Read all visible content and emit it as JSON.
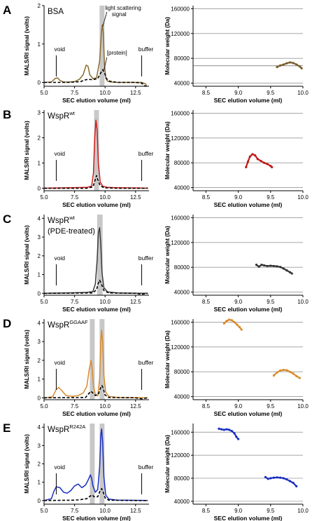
{
  "figure": {
    "panels": [
      {
        "letter": "A",
        "protein": "BSA",
        "protein_sup": "",
        "protein_note": "",
        "left_labels": {
          "void": "void",
          "buffer": "buffer",
          "signal": "light scattering signal",
          "protein_label": "[protein]"
        },
        "right_ref_line": 68000
      },
      {
        "letter": "B",
        "protein": "WspR",
        "protein_sup": "wt",
        "protein_note": "",
        "left_labels": {
          "void": "void",
          "buffer": "buffer"
        }
      },
      {
        "letter": "C",
        "protein": "WspR",
        "protein_sup": "wt",
        "protein_note": "(PDE-treated)",
        "left_labels": {
          "void": "void",
          "buffer": "buffer"
        }
      },
      {
        "letter": "D",
        "protein": "WspR",
        "protein_sup": "GGAAF",
        "protein_note": "",
        "left_labels": {
          "void": "void",
          "buffer": "buffer"
        }
      },
      {
        "letter": "E",
        "protein": "WspR",
        "protein_sup": "R242A",
        "protein_note": "",
        "left_labels": {
          "void": "void",
          "buffer": "buffer"
        }
      }
    ],
    "left_axis": {
      "xlabel": "SEC elution volume (ml)",
      "ylabel": "MALS/RI signal (volts)"
    },
    "right_axis": {
      "xlabel": "SEC elution volume (ml)",
      "ylabel": "Molecular weight (Da)"
    }
  },
  "chart_data": [
    {
      "panel": "A-left",
      "type": "line",
      "xlim": [
        5.0,
        13.6
      ],
      "ylim": [
        -0.1,
        2.0
      ],
      "xticks": [
        "5.0",
        "7.5",
        "10.0",
        "12.5"
      ],
      "yticks": [
        "0",
        "1",
        "2"
      ],
      "shaded": [
        [
          9.55,
          9.95
        ]
      ],
      "series": [
        {
          "color": "#8a6a2e",
          "style": "solid",
          "x": [
            5.0,
            5.6,
            5.9,
            6.1,
            6.3,
            6.6,
            7.0,
            7.5,
            7.9,
            8.2,
            8.45,
            8.6,
            8.75,
            9.0,
            9.3,
            9.55,
            9.7,
            9.78,
            9.85,
            9.95,
            10.05,
            10.2,
            10.5,
            11.0,
            12.0,
            13.0,
            13.4
          ],
          "y": [
            0.0,
            0.01,
            0.1,
            0.12,
            0.05,
            0.01,
            0.01,
            0.02,
            0.08,
            0.2,
            0.45,
            0.42,
            0.2,
            0.1,
            0.12,
            0.55,
            1.3,
            1.5,
            1.3,
            0.5,
            0.12,
            0.03,
            0.01,
            0.0,
            0.0,
            0.0,
            -0.05
          ]
        },
        {
          "color": "#000000",
          "style": "dashed",
          "x": [
            5.0,
            7.0,
            8.0,
            8.3,
            8.6,
            9.0,
            9.4,
            9.65,
            9.8,
            9.95,
            10.1,
            10.4,
            11.0,
            12.5,
            13.0,
            13.3,
            13.5
          ],
          "y": [
            0.0,
            0.0,
            0.02,
            0.06,
            0.08,
            0.07,
            0.1,
            0.25,
            0.33,
            0.26,
            0.1,
            0.03,
            0.0,
            0.0,
            -0.02,
            -0.1,
            -0.05
          ]
        }
      ]
    },
    {
      "panel": "A-right",
      "type": "scatter",
      "xlim": [
        8.3,
        10.0
      ],
      "ylim": [
        35000,
        165000
      ],
      "xticks": [
        "8.5",
        "9.0",
        "9.5",
        "10.0"
      ],
      "yticks": [
        "40000",
        "80000",
        "120000",
        "160000"
      ],
      "hlines": [
        68000
      ],
      "series": [
        {
          "color": "#7a5a2a",
          "x": [
            9.6,
            9.65,
            9.7,
            9.75,
            9.8,
            9.85,
            9.9,
            9.95,
            9.98
          ],
          "y": [
            66000,
            68500,
            70000,
            72000,
            73500,
            72500,
            70000,
            67000,
            64000
          ]
        }
      ]
    },
    {
      "panel": "B-left",
      "type": "line",
      "xlim": [
        5.0,
        13.6
      ],
      "ylim": [
        -0.1,
        3.1
      ],
      "xticks": [
        "5.0",
        "7.5",
        "10.0",
        "12.5"
      ],
      "yticks": [
        "0",
        "1",
        "2",
        "3"
      ],
      "shaded": [
        [
          9.1,
          9.5
        ]
      ],
      "series": [
        {
          "color": "#d01a1a",
          "style": "solid",
          "x": [
            5.0,
            7.0,
            8.5,
            8.9,
            9.05,
            9.15,
            9.25,
            9.35,
            9.45,
            9.6,
            9.8,
            10.2,
            11.0,
            12.5,
            13.5
          ],
          "y": [
            0.0,
            0.02,
            0.03,
            0.08,
            0.6,
            2.0,
            2.7,
            2.3,
            1.0,
            0.25,
            0.08,
            0.03,
            0.02,
            0.01,
            0.0
          ]
        },
        {
          "color": "#000000",
          "style": "dashed",
          "x": [
            5.0,
            8.5,
            9.0,
            9.2,
            9.3,
            9.4,
            9.6,
            9.9,
            11.0,
            13.5
          ],
          "y": [
            0.0,
            0.0,
            0.05,
            0.35,
            0.5,
            0.35,
            0.1,
            0.02,
            0.0,
            0.0
          ]
        }
      ]
    },
    {
      "panel": "B-right",
      "type": "scatter",
      "xlim": [
        8.3,
        10.0
      ],
      "ylim": [
        35000,
        165000
      ],
      "xticks": [
        "8.5",
        "9.0",
        "9.5",
        "10.0"
      ],
      "yticks": [
        "40000",
        "80000",
        "120000",
        "160000"
      ],
      "series": [
        {
          "color": "#c01818",
          "x": [
            9.12,
            9.15,
            9.18,
            9.22,
            9.26,
            9.3,
            9.35,
            9.4,
            9.45,
            9.5,
            9.52
          ],
          "y": [
            73000,
            82000,
            90000,
            94000,
            92000,
            86000,
            83000,
            80000,
            78000,
            75000,
            73000
          ]
        }
      ]
    },
    {
      "panel": "C-left",
      "type": "line",
      "xlim": [
        5.0,
        13.6
      ],
      "ylim": [
        -0.1,
        4.2
      ],
      "xticks": [
        "5.0",
        "7.5",
        "10.0",
        "12.5"
      ],
      "yticks": [
        "0",
        "1",
        "2",
        "3",
        "4"
      ],
      "shaded": [
        [
          9.35,
          9.8
        ]
      ],
      "series": [
        {
          "color": "#3a3a3a",
          "style": "solid",
          "x": [
            5.0,
            7.0,
            8.5,
            9.0,
            9.2,
            9.35,
            9.45,
            9.55,
            9.65,
            9.75,
            9.9,
            10.2,
            11.0,
            12.5,
            13.5
          ],
          "y": [
            0.0,
            0.02,
            0.05,
            0.1,
            0.5,
            1.8,
            3.2,
            3.5,
            2.6,
            1.1,
            0.3,
            0.08,
            0.02,
            0.01,
            0.0
          ]
        },
        {
          "color": "#000000",
          "style": "dashed",
          "x": [
            5.0,
            9.0,
            9.3,
            9.45,
            9.55,
            9.7,
            9.9,
            10.3,
            12.5,
            13.0,
            13.5
          ],
          "y": [
            0.0,
            0.02,
            0.2,
            0.55,
            0.7,
            0.5,
            0.15,
            0.02,
            0.0,
            -0.05,
            0.0
          ]
        }
      ]
    },
    {
      "panel": "C-right",
      "type": "scatter",
      "xlim": [
        8.3,
        10.0
      ],
      "ylim": [
        35000,
        165000
      ],
      "xticks": [
        "8.5",
        "9.0",
        "9.5",
        "10.0"
      ],
      "yticks": [
        "40000",
        "80000",
        "120000",
        "160000"
      ],
      "series": [
        {
          "color": "#333333",
          "x": [
            9.28,
            9.32,
            9.36,
            9.4,
            9.45,
            9.5,
            9.55,
            9.6,
            9.65,
            9.7,
            9.75,
            9.8,
            9.83
          ],
          "y": [
            84000,
            81000,
            84000,
            83000,
            82000,
            82500,
            82000,
            81500,
            80500,
            78000,
            75000,
            72000,
            70000
          ]
        }
      ]
    },
    {
      "panel": "D-left",
      "type": "line",
      "xlim": [
        5.0,
        13.6
      ],
      "ylim": [
        -0.1,
        4.2
      ],
      "xticks": [
        "5.0",
        "7.5",
        "10.0",
        "12.5"
      ],
      "yticks": [
        "0",
        "1",
        "2",
        "3",
        "4"
      ],
      "shaded": [
        [
          8.75,
          9.15
        ],
        [
          9.55,
          9.95
        ]
      ],
      "series": [
        {
          "color": "#d98a2a",
          "style": "solid",
          "x": [
            5.0,
            5.7,
            6.0,
            6.2,
            6.5,
            6.8,
            7.3,
            7.8,
            8.2,
            8.5,
            8.7,
            8.85,
            8.95,
            9.05,
            9.2,
            9.4,
            9.55,
            9.65,
            9.72,
            9.8,
            9.9,
            10.05,
            10.3,
            11.0,
            12.5,
            13.5
          ],
          "y": [
            0.0,
            0.05,
            0.45,
            0.55,
            0.35,
            0.12,
            0.08,
            0.12,
            0.25,
            0.6,
            1.5,
            2.0,
            1.5,
            0.6,
            0.2,
            0.1,
            1.0,
            3.0,
            3.6,
            3.0,
            1.2,
            0.3,
            0.08,
            0.02,
            0.01,
            0.0
          ]
        },
        {
          "color": "#000000",
          "style": "dashed",
          "x": [
            5.0,
            8.4,
            8.7,
            8.85,
            9.0,
            9.2,
            9.45,
            9.65,
            9.75,
            9.85,
            10.0,
            10.3,
            12.5,
            13.0,
            13.5
          ],
          "y": [
            0.0,
            0.02,
            0.25,
            0.35,
            0.25,
            0.12,
            0.2,
            0.55,
            0.65,
            0.5,
            0.15,
            0.02,
            0.0,
            -0.05,
            0.0
          ]
        }
      ]
    },
    {
      "panel": "D-right",
      "type": "scatter",
      "xlim": [
        8.3,
        10.0
      ],
      "ylim": [
        35000,
        165000
      ],
      "xticks": [
        "8.5",
        "9.0",
        "9.5",
        "10.0"
      ],
      "yticks": [
        "40000",
        "80000",
        "120000",
        "160000"
      ],
      "series": [
        {
          "color": "#d98a2a",
          "x": [
            8.78,
            8.82,
            8.86,
            8.9,
            8.94,
            8.98,
            9.02,
            9.05
          ],
          "y": [
            158000,
            162000,
            164000,
            163000,
            160000,
            156000,
            152000,
            148000
          ]
        },
        {
          "color": "#d98a2a",
          "x": [
            9.55,
            9.6,
            9.65,
            9.7,
            9.75,
            9.8,
            9.85,
            9.9,
            9.95
          ],
          "y": [
            74000,
            79000,
            82000,
            83000,
            82500,
            80000,
            77000,
            73000,
            70000
          ]
        }
      ]
    },
    {
      "panel": "E-left",
      "type": "line",
      "xlim": [
        5.0,
        13.6
      ],
      "ylim": [
        -0.2,
        4.2
      ],
      "xticks": [
        "5.0",
        "7.5",
        "10.0",
        "12.5"
      ],
      "yticks": [
        "0",
        "1",
        "2",
        "3",
        "4"
      ],
      "shaded": [
        [
          8.75,
          9.15
        ],
        [
          9.55,
          9.95
        ]
      ],
      "series": [
        {
          "color": "#1a2fc0",
          "style": "solid",
          "x": [
            5.0,
            5.6,
            5.8,
            6.0,
            6.3,
            6.6,
            6.9,
            7.2,
            7.5,
            7.8,
            8.1,
            8.4,
            8.6,
            8.8,
            8.9,
            9.0,
            9.2,
            9.4,
            9.55,
            9.65,
            9.72,
            9.8,
            9.9,
            10.05,
            10.3,
            11.0,
            12.5,
            13.5
          ],
          "y": [
            0.0,
            0.1,
            0.5,
            0.75,
            0.7,
            0.45,
            0.4,
            0.55,
            0.8,
            0.9,
            0.7,
            0.85,
            1.1,
            1.4,
            1.2,
            0.8,
            0.45,
            0.6,
            1.8,
            3.6,
            3.9,
            3.2,
            1.3,
            0.3,
            0.08,
            0.02,
            0.01,
            0.0
          ]
        },
        {
          "color": "#000000",
          "style": "dashed",
          "x": [
            5.0,
            7.5,
            8.0,
            8.5,
            8.8,
            8.95,
            9.1,
            9.4,
            9.6,
            9.72,
            9.85,
            10.0,
            10.3,
            12.5,
            13.5
          ],
          "y": [
            0.0,
            0.02,
            0.05,
            0.1,
            0.25,
            0.3,
            0.2,
            0.2,
            0.55,
            0.65,
            0.45,
            0.15,
            0.02,
            0.0,
            0.0
          ]
        }
      ]
    },
    {
      "panel": "E-right",
      "type": "scatter",
      "xlim": [
        8.3,
        10.0
      ],
      "ylim": [
        35000,
        175000
      ],
      "xticks": [
        "8.5",
        "9.0",
        "9.5",
        "10.0"
      ],
      "yticks": [
        "40000",
        "80000",
        "120000",
        "160000"
      ],
      "series": [
        {
          "color": "#1a2fc0",
          "x": [
            8.7,
            8.74,
            8.78,
            8.82,
            8.86,
            8.9,
            8.94,
            8.97,
            9.0
          ],
          "y": [
            166000,
            165000,
            164000,
            165000,
            164000,
            162000,
            158000,
            152000,
            148000
          ]
        },
        {
          "color": "#1a2fc0",
          "x": [
            9.42,
            9.46,
            9.5,
            9.55,
            9.6,
            9.65,
            9.7,
            9.75,
            9.8,
            9.85,
            9.9
          ],
          "y": [
            82000,
            79000,
            80000,
            81000,
            81500,
            81000,
            80000,
            78000,
            75000,
            72000,
            66000
          ]
        }
      ]
    }
  ]
}
